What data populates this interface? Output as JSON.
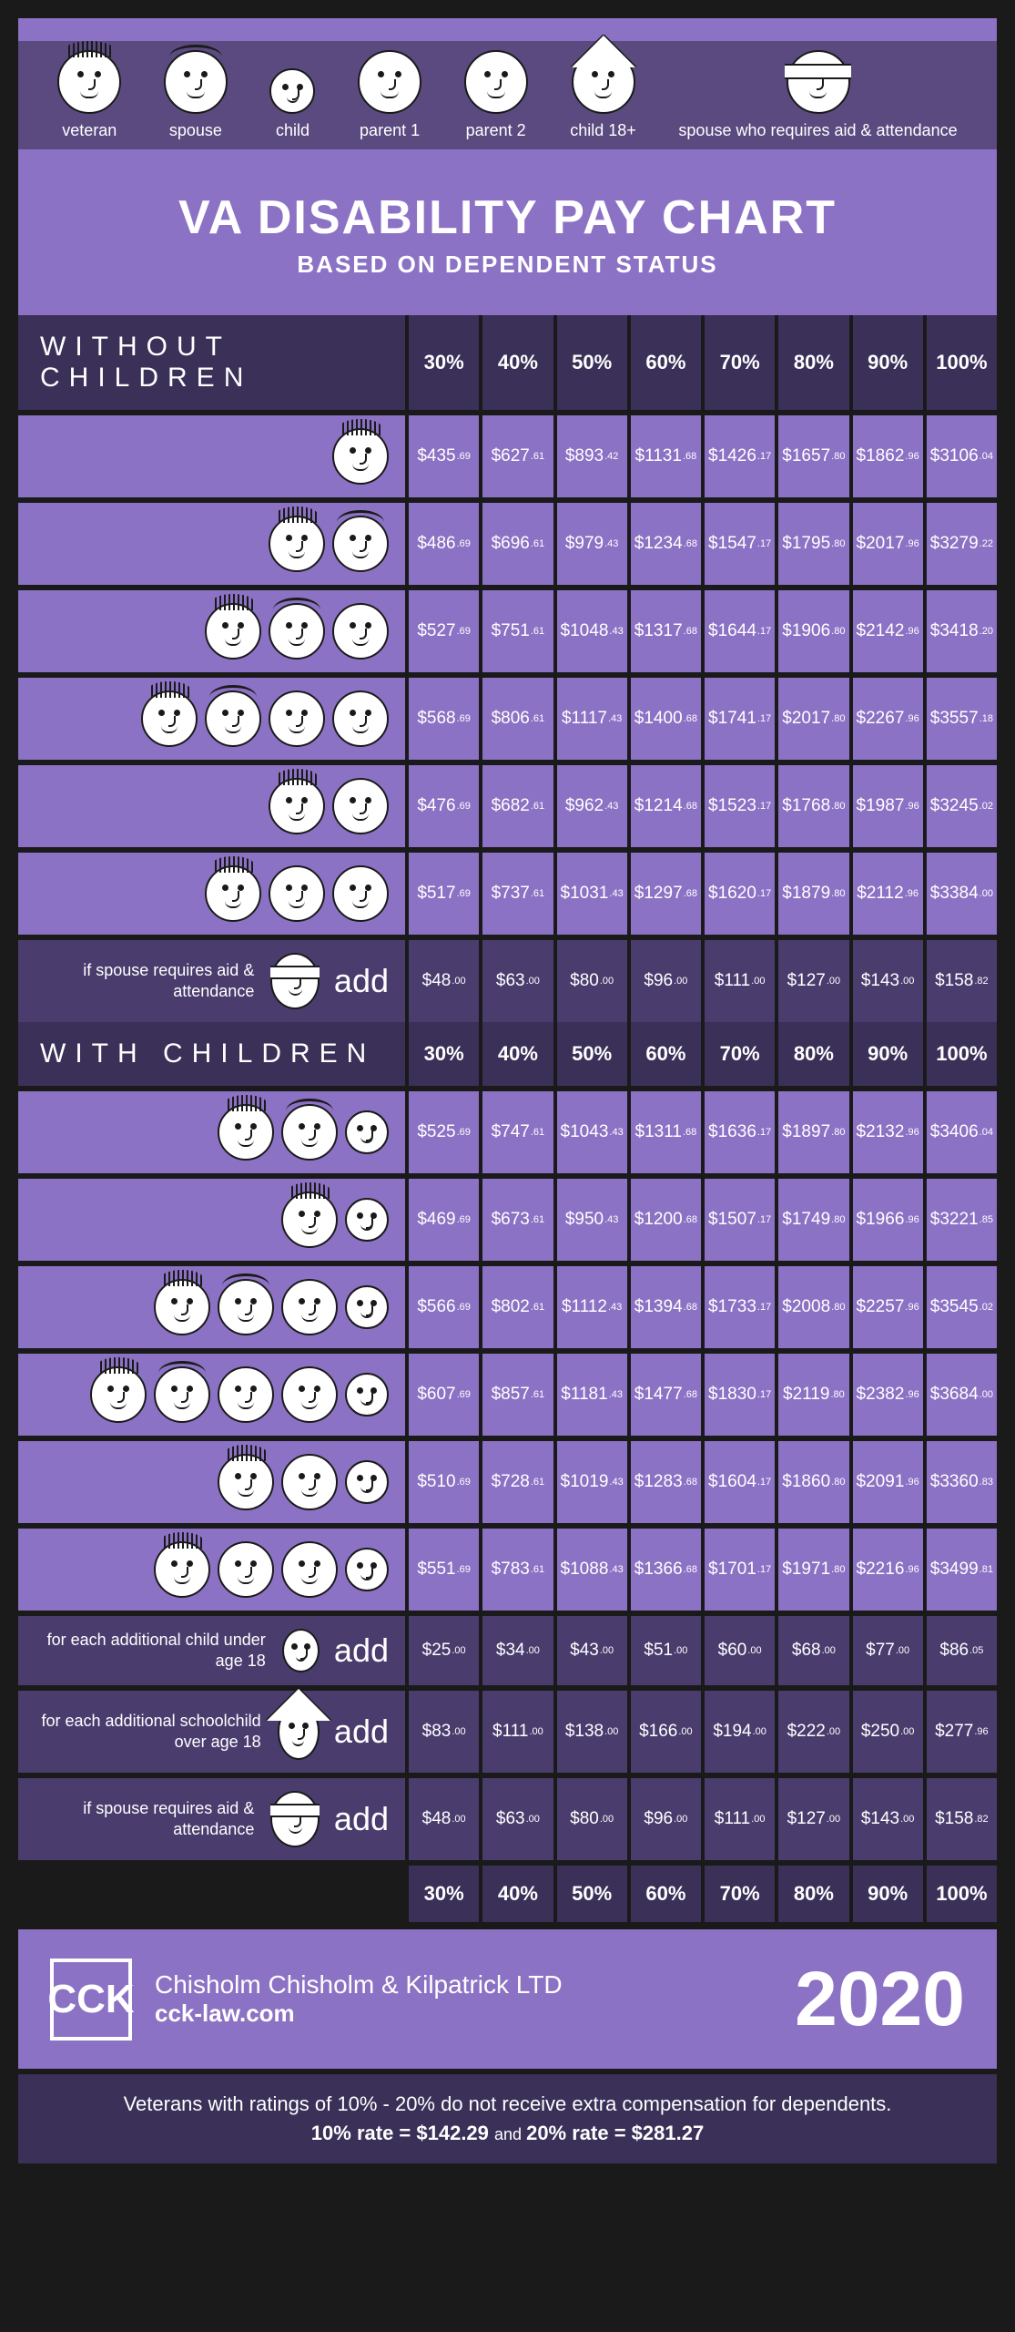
{
  "colors": {
    "bg_dark": "#1a1a1a",
    "purple_light": "#8c72c4",
    "purple_mid": "#5a4a7f",
    "purple_dark": "#4a3d6e",
    "purple_darker": "#3a3058",
    "text": "#ffffff"
  },
  "legend": [
    {
      "label": "veteran"
    },
    {
      "label": "spouse"
    },
    {
      "label": "child"
    },
    {
      "label": "parent 1"
    },
    {
      "label": "parent 2"
    },
    {
      "label": "child 18+"
    },
    {
      "label": "spouse who requires aid & attendance"
    }
  ],
  "title": "VA DISABILITY PAY CHART",
  "subtitle": "BASED ON DEPENDENT STATUS",
  "percent_headers": [
    "30%",
    "40%",
    "50%",
    "60%",
    "70%",
    "80%",
    "90%",
    "100%"
  ],
  "section1_label": "WITHOUT CHILDREN",
  "section2_label": "WITH CHILDREN",
  "add_label": "add",
  "without_children": [
    {
      "faces": [
        "vet"
      ],
      "vals": [
        [
          "$435",
          ".69"
        ],
        [
          "$627",
          ".61"
        ],
        [
          "$893",
          ".42"
        ],
        [
          "$1131",
          ".68"
        ],
        [
          "$1426",
          ".17"
        ],
        [
          "$1657",
          ".80"
        ],
        [
          "$1862",
          ".96"
        ],
        [
          "$3106",
          ".04"
        ]
      ]
    },
    {
      "faces": [
        "vet",
        "spouse"
      ],
      "vals": [
        [
          "$486",
          ".69"
        ],
        [
          "$696",
          ".61"
        ],
        [
          "$979",
          ".43"
        ],
        [
          "$1234",
          ".68"
        ],
        [
          "$1547",
          ".17"
        ],
        [
          "$1795",
          ".80"
        ],
        [
          "$2017",
          ".96"
        ],
        [
          "$3279",
          ".22"
        ]
      ]
    },
    {
      "faces": [
        "vet",
        "spouse",
        "parent"
      ],
      "vals": [
        [
          "$527",
          ".69"
        ],
        [
          "$751",
          ".61"
        ],
        [
          "$1048",
          ".43"
        ],
        [
          "$1317",
          ".68"
        ],
        [
          "$1644",
          ".17"
        ],
        [
          "$1906",
          ".80"
        ],
        [
          "$2142",
          ".96"
        ],
        [
          "$3418",
          ".20"
        ]
      ]
    },
    {
      "faces": [
        "vet",
        "spouse",
        "parent",
        "parent"
      ],
      "vals": [
        [
          "$568",
          ".69"
        ],
        [
          "$806",
          ".61"
        ],
        [
          "$1117",
          ".43"
        ],
        [
          "$1400",
          ".68"
        ],
        [
          "$1741",
          ".17"
        ],
        [
          "$2017",
          ".80"
        ],
        [
          "$2267",
          ".96"
        ],
        [
          "$3557",
          ".18"
        ]
      ]
    },
    {
      "faces": [
        "vet",
        "parent"
      ],
      "vals": [
        [
          "$476",
          ".69"
        ],
        [
          "$682",
          ".61"
        ],
        [
          "$962",
          ".43"
        ],
        [
          "$1214",
          ".68"
        ],
        [
          "$1523",
          ".17"
        ],
        [
          "$1768",
          ".80"
        ],
        [
          "$1987",
          ".96"
        ],
        [
          "$3245",
          ".02"
        ]
      ]
    },
    {
      "faces": [
        "vet",
        "parent",
        "parent"
      ],
      "vals": [
        [
          "$517",
          ".69"
        ],
        [
          "$737",
          ".61"
        ],
        [
          "$1031",
          ".43"
        ],
        [
          "$1297",
          ".68"
        ],
        [
          "$1620",
          ".17"
        ],
        [
          "$1879",
          ".80"
        ],
        [
          "$2112",
          ".96"
        ],
        [
          "$3384",
          ".00"
        ]
      ]
    }
  ],
  "without_add": {
    "text": "if spouse requires aid & attendance",
    "face": "bandage",
    "vals": [
      [
        "$48",
        ".00"
      ],
      [
        "$63",
        ".00"
      ],
      [
        "$80",
        ".00"
      ],
      [
        "$96",
        ".00"
      ],
      [
        "$111",
        ".00"
      ],
      [
        "$127",
        ".00"
      ],
      [
        "$143",
        ".00"
      ],
      [
        "$158",
        ".82"
      ]
    ]
  },
  "with_children": [
    {
      "faces": [
        "vet",
        "spouse",
        "child"
      ],
      "vals": [
        [
          "$525",
          ".69"
        ],
        [
          "$747",
          ".61"
        ],
        [
          "$1043",
          ".43"
        ],
        [
          "$1311",
          ".68"
        ],
        [
          "$1636",
          ".17"
        ],
        [
          "$1897",
          ".80"
        ],
        [
          "$2132",
          ".96"
        ],
        [
          "$3406",
          ".04"
        ]
      ]
    },
    {
      "faces": [
        "vet",
        "child"
      ],
      "vals": [
        [
          "$469",
          ".69"
        ],
        [
          "$673",
          ".61"
        ],
        [
          "$950",
          ".43"
        ],
        [
          "$1200",
          ".68"
        ],
        [
          "$1507",
          ".17"
        ],
        [
          "$1749",
          ".80"
        ],
        [
          "$1966",
          ".96"
        ],
        [
          "$3221",
          ".85"
        ]
      ]
    },
    {
      "faces": [
        "vet",
        "spouse",
        "parent",
        "child"
      ],
      "vals": [
        [
          "$566",
          ".69"
        ],
        [
          "$802",
          ".61"
        ],
        [
          "$1112",
          ".43"
        ],
        [
          "$1394",
          ".68"
        ],
        [
          "$1733",
          ".17"
        ],
        [
          "$2008",
          ".80"
        ],
        [
          "$2257",
          ".96"
        ],
        [
          "$3545",
          ".02"
        ]
      ]
    },
    {
      "faces": [
        "vet",
        "spouse",
        "parent",
        "parent",
        "child"
      ],
      "vals": [
        [
          "$607",
          ".69"
        ],
        [
          "$857",
          ".61"
        ],
        [
          "$1181",
          ".43"
        ],
        [
          "$1477",
          ".68"
        ],
        [
          "$1830",
          ".17"
        ],
        [
          "$2119",
          ".80"
        ],
        [
          "$2382",
          ".96"
        ],
        [
          "$3684",
          ".00"
        ]
      ]
    },
    {
      "faces": [
        "vet",
        "parent",
        "child"
      ],
      "vals": [
        [
          "$510",
          ".69"
        ],
        [
          "$728",
          ".61"
        ],
        [
          "$1019",
          ".43"
        ],
        [
          "$1283",
          ".68"
        ],
        [
          "$1604",
          ".17"
        ],
        [
          "$1860",
          ".80"
        ],
        [
          "$2091",
          ".96"
        ],
        [
          "$3360",
          ".83"
        ]
      ]
    },
    {
      "faces": [
        "vet",
        "parent",
        "parent",
        "child"
      ],
      "vals": [
        [
          "$551",
          ".69"
        ],
        [
          "$783",
          ".61"
        ],
        [
          "$1088",
          ".43"
        ],
        [
          "$1366",
          ".68"
        ],
        [
          "$1701",
          ".17"
        ],
        [
          "$1971",
          ".80"
        ],
        [
          "$2216",
          ".96"
        ],
        [
          "$3499",
          ".81"
        ]
      ]
    }
  ],
  "with_adds": [
    {
      "text": "for each additional child under age 18",
      "face": "child",
      "vals": [
        [
          "$25",
          ".00"
        ],
        [
          "$34",
          ".00"
        ],
        [
          "$43",
          ".00"
        ],
        [
          "$51",
          ".00"
        ],
        [
          "$60",
          ".00"
        ],
        [
          "$68",
          ".00"
        ],
        [
          "$77",
          ".00"
        ],
        [
          "$86",
          ".05"
        ]
      ]
    },
    {
      "text": "for each additional schoolchild over age 18",
      "face": "hat",
      "vals": [
        [
          "$83",
          ".00"
        ],
        [
          "$111",
          ".00"
        ],
        [
          "$138",
          ".00"
        ],
        [
          "$166",
          ".00"
        ],
        [
          "$194",
          ".00"
        ],
        [
          "$222",
          ".00"
        ],
        [
          "$250",
          ".00"
        ],
        [
          "$277",
          ".96"
        ]
      ]
    },
    {
      "text": "if spouse requires aid & attendance",
      "face": "bandage",
      "vals": [
        [
          "$48",
          ".00"
        ],
        [
          "$63",
          ".00"
        ],
        [
          "$80",
          ".00"
        ],
        [
          "$96",
          ".00"
        ],
        [
          "$111",
          ".00"
        ],
        [
          "$127",
          ".00"
        ],
        [
          "$143",
          ".00"
        ],
        [
          "$158",
          ".82"
        ]
      ]
    }
  ],
  "footer": {
    "logo": "CCK",
    "firm": "Chisholm Chisholm & Kilpatrick LTD",
    "url": "cck-law.com",
    "year": "2020"
  },
  "footnote": {
    "line1": "Veterans with ratings of 10% - 20% do not receive extra compensation for dependents.",
    "rate10_label": "10% rate = ",
    "rate10_val": "$142.29",
    "and": " and ",
    "rate20_label": "20% rate = ",
    "rate20_val": "$281.27"
  }
}
